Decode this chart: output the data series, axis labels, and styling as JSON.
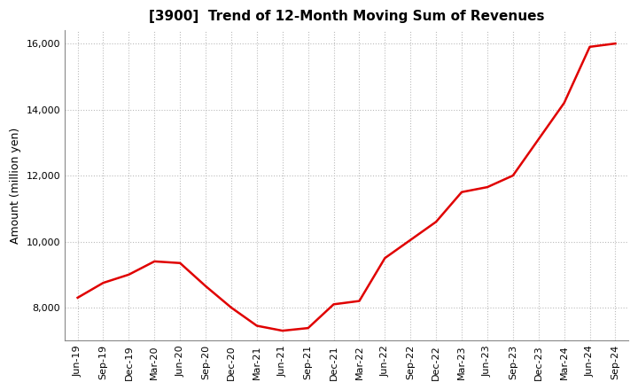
{
  "title": "[3900]  Trend of 12-Month Moving Sum of Revenues",
  "ylabel": "Amount (million yen)",
  "line_color": "#e00000",
  "line_width": 1.8,
  "background_color": "#ffffff",
  "grid_color": "#bbbbbb",
  "ylim": [
    7000,
    16400
  ],
  "yticks": [
    8000,
    10000,
    12000,
    14000,
    16000
  ],
  "x_labels": [
    "Jun-19",
    "Sep-19",
    "Dec-19",
    "Mar-20",
    "Jun-20",
    "Sep-20",
    "Dec-20",
    "Mar-21",
    "Jun-21",
    "Sep-21",
    "Dec-21",
    "Mar-22",
    "Jun-22",
    "Sep-22",
    "Dec-22",
    "Mar-23",
    "Jun-23",
    "Sep-23",
    "Dec-23",
    "Mar-24",
    "Jun-24",
    "Sep-24"
  ],
  "values": [
    8300,
    8750,
    9000,
    9400,
    9350,
    8650,
    8000,
    7450,
    7300,
    7380,
    8100,
    8200,
    9500,
    10050,
    10600,
    11500,
    11650,
    12000,
    13100,
    14200,
    15900,
    16000
  ],
  "title_fontsize": 11,
  "ylabel_fontsize": 9,
  "tick_fontsize": 8
}
